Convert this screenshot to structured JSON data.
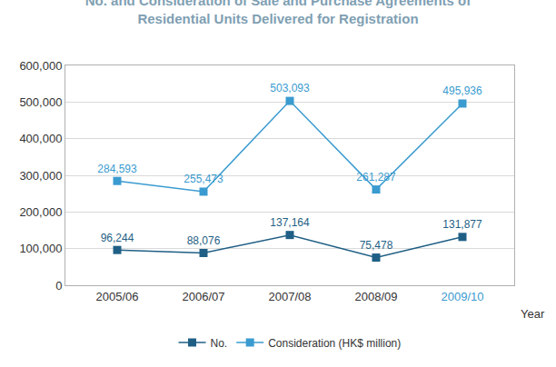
{
  "chart_data": {
    "type": "line",
    "title": "No. and Consideration of Sale and Purchase Agreements of Residential Units Delivered for Registration",
    "x_label": "Year",
    "categories": [
      "2005/06",
      "2006/07",
      "2007/08",
      "2008/09",
      "2009/10"
    ],
    "series": [
      {
        "name": "No.",
        "color": "#1f5f85",
        "marker": "square",
        "line_style": "solid",
        "values": [
          96244,
          88076,
          137164,
          75478,
          131877
        ],
        "value_labels": [
          "96,244",
          "88,076",
          "137,164",
          "75,478",
          "131,877"
        ]
      },
      {
        "name": "Consideration (HK$ million)",
        "color": "#3a9bd0",
        "marker": "square",
        "line_style": "solid",
        "values": [
          284593,
          255473,
          503093,
          261287,
          495936
        ],
        "value_labels": [
          "284,593",
          "255,473",
          "503,093",
          "261,287",
          "495,936"
        ]
      }
    ],
    "ylim": [
      0,
      600000
    ],
    "yticks": [
      0,
      {
        "value": 100000,
        "label": "100,000"
      },
      {
        "value": 200000,
        "label": "200,000"
      },
      {
        "value": 300000,
        "label": "300,000"
      },
      {
        "value": 400000,
        "label": "400,000"
      },
      {
        "value": 500000,
        "label": "500,000"
      },
      {
        "value": 600000,
        "label": "600,000"
      }
    ],
    "grid": true,
    "data_labels": true,
    "legend": "bottom"
  }
}
